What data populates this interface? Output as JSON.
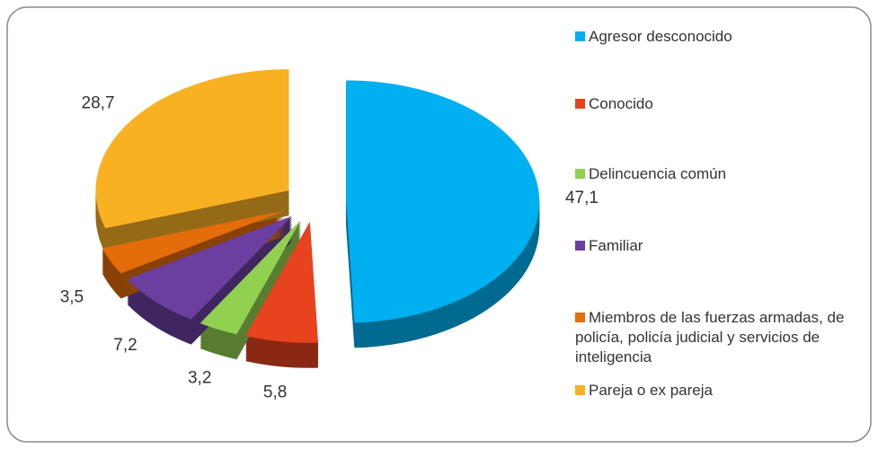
{
  "chart_data": {
    "type": "pie",
    "categories": [
      "Agresor desconocido",
      "Conocido",
      "Delincuencia común",
      "Familiar",
      "Miembros de las fuerzas armadas, de policía, policía judicial y servicios de inteligencia",
      "Pareja o ex pareja"
    ],
    "values": [
      47.1,
      5.8,
      3.2,
      7.2,
      3.5,
      28.7
    ],
    "value_labels": [
      "47,1",
      "5,8",
      "3,2",
      "7,2",
      "3,5",
      "28,7"
    ],
    "colors": [
      "#00b0f0",
      "#e8431f",
      "#92d050",
      "#6a3fa0",
      "#e46c0a",
      "#f9b124"
    ],
    "legend": "right"
  }
}
